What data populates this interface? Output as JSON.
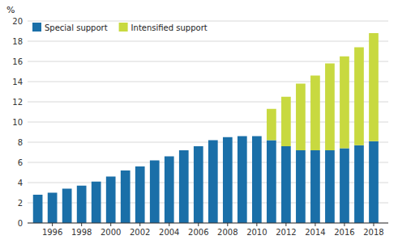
{
  "chart_data": {
    "type": "bar",
    "stacked": true,
    "ylabel": "%",
    "x": [
      1995,
      1996,
      1997,
      1998,
      1999,
      2000,
      2001,
      2002,
      2003,
      2004,
      2005,
      2006,
      2007,
      2008,
      2009,
      2010,
      2011,
      2012,
      2013,
      2014,
      2015,
      2016,
      2017,
      2018
    ],
    "series": [
      {
        "name": "Special support",
        "color": "#1a6fa8",
        "values": [
          2.8,
          3.0,
          3.4,
          3.7,
          4.1,
          4.6,
          5.2,
          5.6,
          6.2,
          6.6,
          7.2,
          7.6,
          8.2,
          8.5,
          8.6,
          8.6,
          8.2,
          7.6,
          7.2,
          7.2,
          7.2,
          7.4,
          7.7,
          8.1
        ]
      },
      {
        "name": "Intensified support",
        "color": "#c8d940",
        "values": [
          0,
          0,
          0,
          0,
          0,
          0,
          0,
          0,
          0,
          0,
          0,
          0,
          0,
          0,
          0,
          0,
          3.1,
          4.9,
          6.6,
          7.4,
          8.6,
          9.1,
          9.7,
          10.7
        ]
      }
    ],
    "xlim": [
      1994.3,
      2019.0
    ],
    "xticks": [
      1996,
      1998,
      2000,
      2002,
      2004,
      2006,
      2008,
      2010,
      2012,
      2014,
      2016,
      2018
    ],
    "ylim": [
      0,
      20
    ],
    "yticks": [
      0,
      2,
      4,
      6,
      8,
      10,
      12,
      14,
      16,
      18,
      20
    ],
    "grid": true,
    "legend": "upper left"
  }
}
